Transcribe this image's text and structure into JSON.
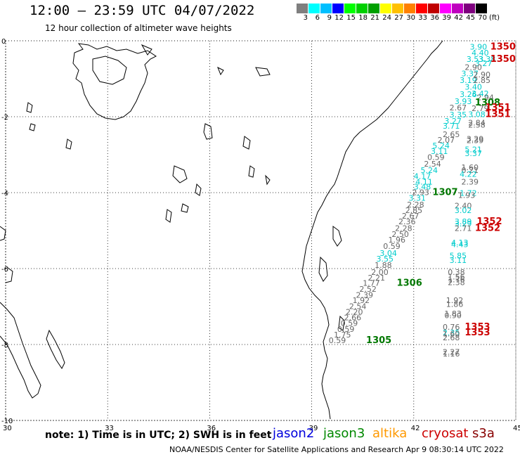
{
  "header": {
    "title": "12:00 – 23:59 UTC 04/07/2022",
    "subtitle": "12 hour collection of altimeter wave heights"
  },
  "colorbar": {
    "colors": [
      "#7f7f7f",
      "#00ffff",
      "#00bfff",
      "#0000ff",
      "#00ff00",
      "#00d000",
      "#00a000",
      "#ffff00",
      "#ffc000",
      "#ff8000",
      "#ff0000",
      "#c00000",
      "#ff00ff",
      "#bf00bf",
      "#7f007f",
      "#000000"
    ],
    "labels": [
      "3",
      "6",
      "9",
      "12",
      "15",
      "18",
      "21",
      "24",
      "27",
      "30",
      "33",
      "36",
      "39",
      "42",
      "45",
      "70",
      "(ft)"
    ]
  },
  "map": {
    "lon_ticks": [
      "30",
      "33",
      "36",
      "39",
      "42",
      "45"
    ],
    "lat_ticks": [
      "0",
      "-2",
      "-4",
      "-6",
      "-8",
      "-10"
    ],
    "lon_range": [
      30,
      45
    ],
    "lat_range": [
      -10,
      0
    ],
    "grid": "dotted",
    "coastline": "East Africa (Kenya / Tanzania) and Lake Victoria / Lake Tanganyika outlines"
  },
  "observations": [
    {
      "t": "3.90",
      "c": "#00cccc",
      "x": 43.65,
      "y": -0.05
    },
    {
      "t": "4.40",
      "c": "#00cccc",
      "x": 43.7,
      "y": -0.2
    },
    {
      "t": "3.53",
      "c": "#00cccc",
      "x": 43.55,
      "y": -0.37
    },
    {
      "t": "3.38",
      "c": "#00cccc",
      "x": 43.9,
      "y": -0.37
    },
    {
      "t": "3.27",
      "c": "#00cccc",
      "x": 43.8,
      "y": -0.48
    },
    {
      "t": "2.90",
      "c": "#666666",
      "x": 43.5,
      "y": -0.58
    },
    {
      "t": "3.37",
      "c": "#00cccc",
      "x": 43.4,
      "y": -0.75
    },
    {
      "t": "2.90",
      "c": "#666666",
      "x": 43.75,
      "y": -0.78
    },
    {
      "t": "3.19",
      "c": "#00cccc",
      "x": 43.35,
      "y": -0.93
    },
    {
      "t": "2.85",
      "c": "#666666",
      "x": 43.75,
      "y": -0.93
    },
    {
      "t": "3.40",
      "c": "#00cccc",
      "x": 43.5,
      "y": -1.1
    },
    {
      "t": "3.26",
      "c": "#00cccc",
      "x": 43.35,
      "y": -1.3
    },
    {
      "t": "3.42",
      "c": "#00cccc",
      "x": 43.7,
      "y": -1.28
    },
    {
      "t": "2.94",
      "c": "#666666",
      "x": 43.85,
      "y": -1.38
    },
    {
      "t": "3.93",
      "c": "#00cccc",
      "x": 43.2,
      "y": -1.48
    },
    {
      "t": "2.67",
      "c": "#666666",
      "x": 43.05,
      "y": -1.65
    },
    {
      "t": "2.79",
      "c": "#666666",
      "x": 43.7,
      "y": -1.67
    },
    {
      "t": "3.35",
      "c": "#00cccc",
      "x": 43.05,
      "y": -1.83
    },
    {
      "t": "3.08",
      "c": "#00cccc",
      "x": 43.6,
      "y": -1.82
    },
    {
      "t": "3.27",
      "c": "#00cccc",
      "x": 42.9,
      "y": -2.0
    },
    {
      "t": "2.84",
      "c": "#666666",
      "x": 43.6,
      "y": -2.05
    },
    {
      "t": "2.58",
      "c": "#666666",
      "x": 43.6,
      "y": -2.1
    },
    {
      "t": "3.71",
      "c": "#00cccc",
      "x": 42.85,
      "y": -2.13
    },
    {
      "t": "2.65",
      "c": "#666666",
      "x": 42.85,
      "y": -2.35
    },
    {
      "t": "2.07",
      "c": "#666666",
      "x": 42.7,
      "y": -2.5
    },
    {
      "t": "3.29",
      "c": "#666666",
      "x": 43.55,
      "y": -2.47
    },
    {
      "t": "2.39",
      "c": "#666666",
      "x": 43.55,
      "y": -2.51
    },
    {
      "t": "5.24",
      "c": "#00cccc",
      "x": 42.55,
      "y": -2.65
    },
    {
      "t": "3.11",
      "c": "#00cccc",
      "x": 42.5,
      "y": -2.8
    },
    {
      "t": "5.21",
      "c": "#00cccc",
      "x": 43.5,
      "y": -2.75
    },
    {
      "t": "3.37",
      "c": "#00cccc",
      "x": 43.5,
      "y": -2.85
    },
    {
      "t": "0.59",
      "c": "#666666",
      "x": 42.4,
      "y": -2.95
    },
    {
      "t": "2.54",
      "c": "#666666",
      "x": 42.3,
      "y": -3.13
    },
    {
      "t": "1.60",
      "c": "#666666",
      "x": 43.4,
      "y": -3.22
    },
    {
      "t": "5.24",
      "c": "#00cccc",
      "x": 42.2,
      "y": -3.3
    },
    {
      "t": "0.21",
      "c": "#666666",
      "x": 43.4,
      "y": -3.3
    },
    {
      "t": "4.22",
      "c": "#00cccc",
      "x": 43.35,
      "y": -3.4
    },
    {
      "t": "4.17",
      "c": "#00cccc",
      "x": 42.0,
      "y": -3.45
    },
    {
      "t": "4.11",
      "c": "#00cccc",
      "x": 42.05,
      "y": -3.6
    },
    {
      "t": "2.39",
      "c": "#666666",
      "x": 43.4,
      "y": -3.6
    },
    {
      "t": "3.48",
      "c": "#00cccc",
      "x": 42.0,
      "y": -3.73
    },
    {
      "t": "2.93",
      "c": "#666666",
      "x": 41.95,
      "y": -3.88
    },
    {
      "t": "1.72",
      "c": "#00cccc",
      "x": 43.35,
      "y": -3.9
    },
    {
      "t": "1.93",
      "c": "#666666",
      "x": 43.3,
      "y": -3.95
    },
    {
      "t": "3.31",
      "c": "#00cccc",
      "x": 41.85,
      "y": -4.03
    },
    {
      "t": "2.28",
      "c": "#666666",
      "x": 41.8,
      "y": -4.2
    },
    {
      "t": "2.40",
      "c": "#666666",
      "x": 43.2,
      "y": -4.23
    },
    {
      "t": "3.02",
      "c": "#00cccc",
      "x": 43.2,
      "y": -4.35
    },
    {
      "t": "2.85",
      "c": "#666666",
      "x": 41.75,
      "y": -4.35
    },
    {
      "t": "2.67",
      "c": "#666666",
      "x": 41.65,
      "y": -4.5
    },
    {
      "t": "2.36",
      "c": "#666666",
      "x": 41.55,
      "y": -4.65
    },
    {
      "t": "3.89",
      "c": "#00cccc",
      "x": 43.2,
      "y": -4.65
    },
    {
      "t": "3.29",
      "c": "#00cccc",
      "x": 43.2,
      "y": -4.7
    },
    {
      "t": "2.28",
      "c": "#666666",
      "x": 41.45,
      "y": -4.82
    },
    {
      "t": "2.71",
      "c": "#666666",
      "x": 43.2,
      "y": -4.82
    },
    {
      "t": "2.50",
      "c": "#666666",
      "x": 41.35,
      "y": -4.98
    },
    {
      "t": "1.96",
      "c": "#666666",
      "x": 41.25,
      "y": -5.13
    },
    {
      "t": "4.13",
      "c": "#00cccc",
      "x": 43.1,
      "y": -5.2
    },
    {
      "t": "4.43",
      "c": "#00cccc",
      "x": 43.1,
      "y": -5.25
    },
    {
      "t": "0.59",
      "c": "#666666",
      "x": 41.1,
      "y": -5.3
    },
    {
      "t": "3.04",
      "c": "#00cccc",
      "x": 41.0,
      "y": -5.48
    },
    {
      "t": "5.85",
      "c": "#00cccc",
      "x": 43.05,
      "y": -5.55
    },
    {
      "t": "3.11",
      "c": "#00cccc",
      "x": 43.05,
      "y": -5.67
    },
    {
      "t": "3.55",
      "c": "#00cccc",
      "x": 40.9,
      "y": -5.63
    },
    {
      "t": "1.88",
      "c": "#666666",
      "x": 40.85,
      "y": -5.8
    },
    {
      "t": "0.38",
      "c": "#666666",
      "x": 43.0,
      "y": -5.98
    },
    {
      "t": "2.00",
      "c": "#666666",
      "x": 40.75,
      "y": -5.98
    },
    {
      "t": "1.56",
      "c": "#666666",
      "x": 43.0,
      "y": -6.1
    },
    {
      "t": "2.21",
      "c": "#666666",
      "x": 40.65,
      "y": -6.13
    },
    {
      "t": "1.76",
      "c": "#666666",
      "x": 43.0,
      "y": -6.18
    },
    {
      "t": "2.38",
      "c": "#666666",
      "x": 43.0,
      "y": -6.25
    },
    {
      "t": "1.77",
      "c": "#666666",
      "x": 40.5,
      "y": -6.27
    },
    {
      "t": "2.52",
      "c": "#666666",
      "x": 40.4,
      "y": -6.43
    },
    {
      "t": "2.39",
      "c": "#666666",
      "x": 40.3,
      "y": -6.58
    },
    {
      "t": "1.92",
      "c": "#666666",
      "x": 40.2,
      "y": -6.72
    },
    {
      "t": "1.92",
      "c": "#666666",
      "x": 42.95,
      "y": -6.72
    },
    {
      "t": "1.86",
      "c": "#666666",
      "x": 42.95,
      "y": -6.82
    },
    {
      "t": "2.54",
      "c": "#666666",
      "x": 40.1,
      "y": -6.88
    },
    {
      "t": "2.20",
      "c": "#666666",
      "x": 40.0,
      "y": -7.03
    },
    {
      "t": "1.83",
      "c": "#666666",
      "x": 42.9,
      "y": -7.07
    },
    {
      "t": "0.90",
      "c": "#666666",
      "x": 42.9,
      "y": -7.12
    },
    {
      "t": "2.66",
      "c": "#666666",
      "x": 39.95,
      "y": -7.18
    },
    {
      "t": "0.59",
      "c": "#666666",
      "x": 39.85,
      "y": -7.32
    },
    {
      "t": "0.76",
      "c": "#666666",
      "x": 42.85,
      "y": -7.43
    },
    {
      "t": "0.59",
      "c": "#666666",
      "x": 39.75,
      "y": -7.48
    },
    {
      "t": "2.35",
      "c": "#00cccc",
      "x": 42.85,
      "y": -7.57
    },
    {
      "t": "1.60",
      "c": "#666666",
      "x": 42.85,
      "y": -7.6
    },
    {
      "t": "1.75",
      "c": "#666666",
      "x": 39.65,
      "y": -7.63
    },
    {
      "t": "2.68",
      "c": "#666666",
      "x": 42.85,
      "y": -7.7
    },
    {
      "t": "0.59",
      "c": "#666666",
      "x": 39.5,
      "y": -7.78
    },
    {
      "t": "2.27",
      "c": "#666666",
      "x": 42.85,
      "y": -8.08
    },
    {
      "t": "1.16",
      "c": "#666666",
      "x": 42.85,
      "y": -8.13
    }
  ],
  "passes": [
    {
      "t": "1350",
      "c": "#cc0000",
      "x": 44.25,
      "y": -0.05
    },
    {
      "t": "1350",
      "c": "#cc0000",
      "x": 44.25,
      "y": -0.37
    },
    {
      "t": "1308",
      "c": "#007700",
      "x": 43.8,
      "y": -1.52
    },
    {
      "t": "1351",
      "c": "#cc0000",
      "x": 44.1,
      "y": -1.65
    },
    {
      "t": "1351",
      "c": "#cc0000",
      "x": 44.1,
      "y": -1.82
    },
    {
      "t": "1307",
      "c": "#007700",
      "x": 42.55,
      "y": -3.88
    },
    {
      "t": "1352",
      "c": "#cc0000",
      "x": 43.85,
      "y": -4.65
    },
    {
      "t": "1352",
      "c": "#cc0000",
      "x": 43.8,
      "y": -4.82
    },
    {
      "t": "1306",
      "c": "#007700",
      "x": 41.5,
      "y": -6.27
    },
    {
      "t": "1353",
      "c": "#cc0000",
      "x": 43.5,
      "y": -7.43
    },
    {
      "t": "1353",
      "c": "#cc0000",
      "x": 43.5,
      "y": -7.57
    },
    {
      "t": "1305",
      "c": "#007700",
      "x": 40.6,
      "y": -7.78
    }
  ],
  "footer": {
    "note": "note: 1) Time is in UTC; 2) SWH is in feet",
    "satellites": [
      {
        "name": "jason2",
        "color": "#0000dd"
      },
      {
        "name": "jason3",
        "color": "#008800"
      },
      {
        "name": "altika",
        "color": "#ff9900"
      },
      {
        "name": "cryosat",
        "color": "#cc0000"
      },
      {
        "name": "s3a",
        "color": "#880000"
      }
    ],
    "credit": "NOAA/NESDIS Center for Satellite Applications and Research   Apr  9 08:30:14 UTC 2022"
  }
}
